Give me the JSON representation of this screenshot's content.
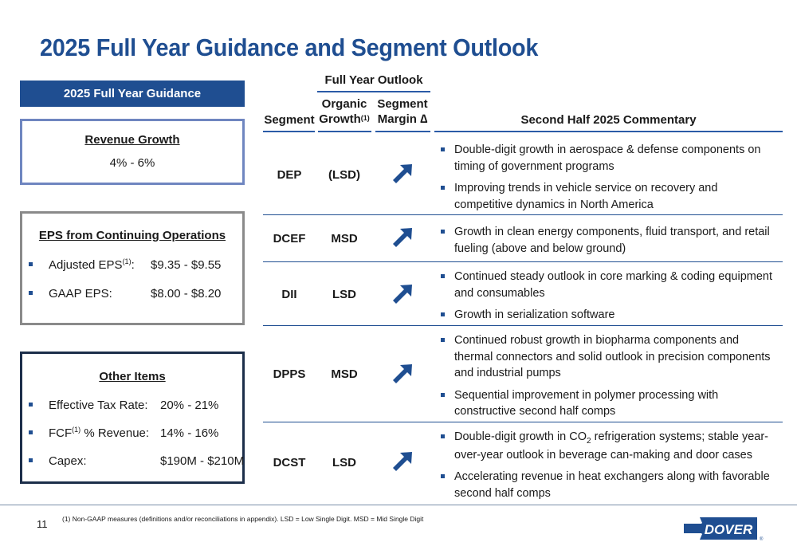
{
  "title": "2025 Full Year Guidance and Segment Outlook",
  "guidance": {
    "header": "2025 Full Year Guidance",
    "revenue": {
      "title": "Revenue Growth",
      "value": "4% - 6%"
    },
    "eps": {
      "title": "EPS from Continuing Operations",
      "items": [
        {
          "label": "Adjusted EPS",
          "sup": "(1)",
          "suffix": ":",
          "value": "$9.35 - $9.55"
        },
        {
          "label": "GAAP EPS:",
          "value": "$8.00 - $8.20"
        }
      ]
    },
    "other": {
      "title": "Other Items",
      "items": [
        {
          "label": "Effective Tax Rate:",
          "value": "20% - 21%"
        },
        {
          "label": "FCF",
          "sup": "(1)",
          "suffix": " % Revenue:",
          "value": "14% - 16%"
        },
        {
          "label": "Capex:",
          "value": "$190M - $210M"
        }
      ]
    }
  },
  "table": {
    "outlook_header": "Full Year Outlook",
    "col_segment": "Segment",
    "col_organic_1": "Organic",
    "col_organic_2": "Growth",
    "col_organic_sup": "(1)",
    "col_margin_1": "Segment",
    "col_margin_2": "Margin ∆",
    "col_commentary": "Second Half 2025 Commentary",
    "arrow_icon": "up-right-arrow-icon",
    "rows": [
      {
        "segment": "DEP",
        "organic": "(LSD)",
        "margin": "up",
        "commentary": [
          "Double-digit growth in aerospace & defense components on timing of government programs",
          "Improving trends in vehicle service on recovery and competitive dynamics in North America"
        ]
      },
      {
        "segment": "DCEF",
        "organic": "MSD",
        "margin": "up",
        "commentary": [
          "Growth in clean energy components, fluid transport, and retail fueling (above and below ground)"
        ]
      },
      {
        "segment": "DII",
        "organic": "LSD",
        "margin": "up",
        "commentary": [
          "Continued steady outlook in core marking & coding equipment and consumables",
          "Growth in serialization software"
        ]
      },
      {
        "segment": "DPPS",
        "organic": "MSD",
        "margin": "up",
        "commentary": [
          "Continued robust growth in biopharma components and thermal connectors and solid outlook in precision components and industrial pumps",
          "Sequential improvement in polymer processing with constructive second half comps"
        ]
      },
      {
        "segment": "DCST",
        "organic": "LSD",
        "margin": "up",
        "commentary": [
          {
            "pre": "Double-digit growth in CO",
            "sub": "2",
            "post": " refrigeration systems; stable year-over-year outlook in beverage can-making and door cases"
          },
          "Accelerating revenue in heat exchangers along with favorable second half comps"
        ]
      }
    ]
  },
  "footer": {
    "page_number": "11",
    "footnote": "(1)    Non-GAAP measures (definitions and/or reconciliations in appendix). LSD = Low Single Digit. MSD = Mid Single Digit",
    "logo_text": "DOVER",
    "logo_mark": "®"
  },
  "colors": {
    "brand_blue": "#1f4e91",
    "header_blue": "#2b5ba7"
  }
}
